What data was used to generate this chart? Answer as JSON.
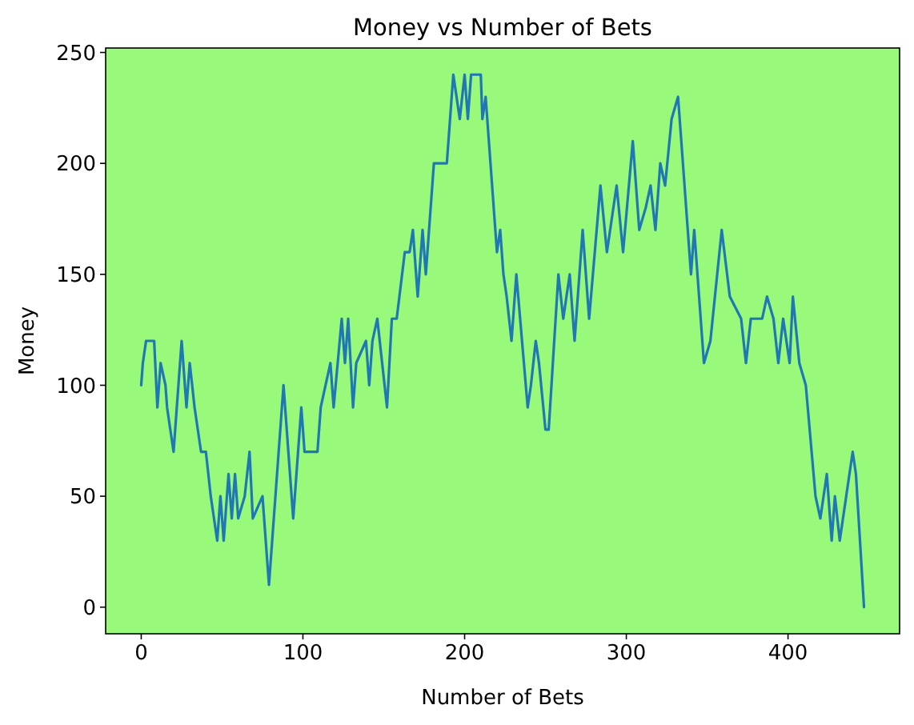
{
  "chart_data": {
    "type": "line",
    "title": "Money vs Number of Bets",
    "xlabel": "Number of Bets",
    "ylabel": "Money",
    "x": [
      0,
      1,
      3,
      8,
      10,
      12,
      15,
      16,
      20,
      25,
      28,
      30,
      33,
      37,
      40,
      43,
      47,
      49,
      51,
      54,
      56,
      58,
      60,
      64,
      67,
      69,
      75,
      79,
      88,
      94,
      99,
      101,
      109,
      111,
      114,
      117,
      119,
      124,
      126,
      128,
      131,
      133,
      139,
      141,
      143,
      146,
      149,
      152,
      155,
      158,
      163,
      166,
      168,
      171,
      174,
      176,
      181,
      189,
      193,
      197,
      200,
      202,
      204,
      210,
      211,
      213,
      220,
      222,
      224,
      226,
      229,
      232,
      239,
      241,
      244,
      246,
      250,
      252,
      258,
      261,
      265,
      268,
      273,
      277,
      284,
      288,
      294,
      298,
      304,
      308,
      312,
      315,
      318,
      321,
      324,
      328,
      332,
      340,
      342,
      348,
      352,
      359,
      364,
      371,
      374,
      377,
      384,
      387,
      391,
      394,
      397,
      401,
      403,
      407,
      411,
      417,
      420,
      424,
      427,
      429,
      432,
      436,
      440,
      442,
      447
    ],
    "series": [
      {
        "color": "#1f77b4",
        "values": [
          100,
          110,
          120,
          120,
          90,
          110,
          100,
          90,
          70,
          120,
          90,
          110,
          90,
          70,
          70,
          50,
          30,
          50,
          30,
          60,
          40,
          60,
          40,
          50,
          70,
          40,
          50,
          10,
          100,
          40,
          90,
          70,
          70,
          90,
          100,
          110,
          90,
          130,
          110,
          130,
          90,
          110,
          120,
          100,
          120,
          130,
          110,
          90,
          130,
          130,
          160,
          160,
          170,
          140,
          170,
          150,
          200,
          200,
          240,
          220,
          240,
          220,
          240,
          240,
          220,
          230,
          160,
          170,
          150,
          140,
          120,
          150,
          90,
          100,
          120,
          110,
          80,
          80,
          150,
          130,
          150,
          120,
          170,
          130,
          190,
          160,
          190,
          160,
          210,
          170,
          180,
          190,
          170,
          200,
          190,
          220,
          230,
          150,
          170,
          110,
          120,
          170,
          140,
          130,
          110,
          130,
          130,
          140,
          130,
          110,
          130,
          110,
          140,
          110,
          100,
          50,
          40,
          60,
          30,
          50,
          30,
          50,
          70,
          60,
          0
        ]
      }
    ],
    "xlim": [
      -22,
      469
    ],
    "ylim": [
      -12,
      252
    ],
    "xticks": [
      0,
      100,
      200,
      300,
      400
    ],
    "yticks": [
      0,
      50,
      100,
      150,
      200,
      250
    ],
    "grid": false,
    "line_style": "solid",
    "marker": "none"
  }
}
